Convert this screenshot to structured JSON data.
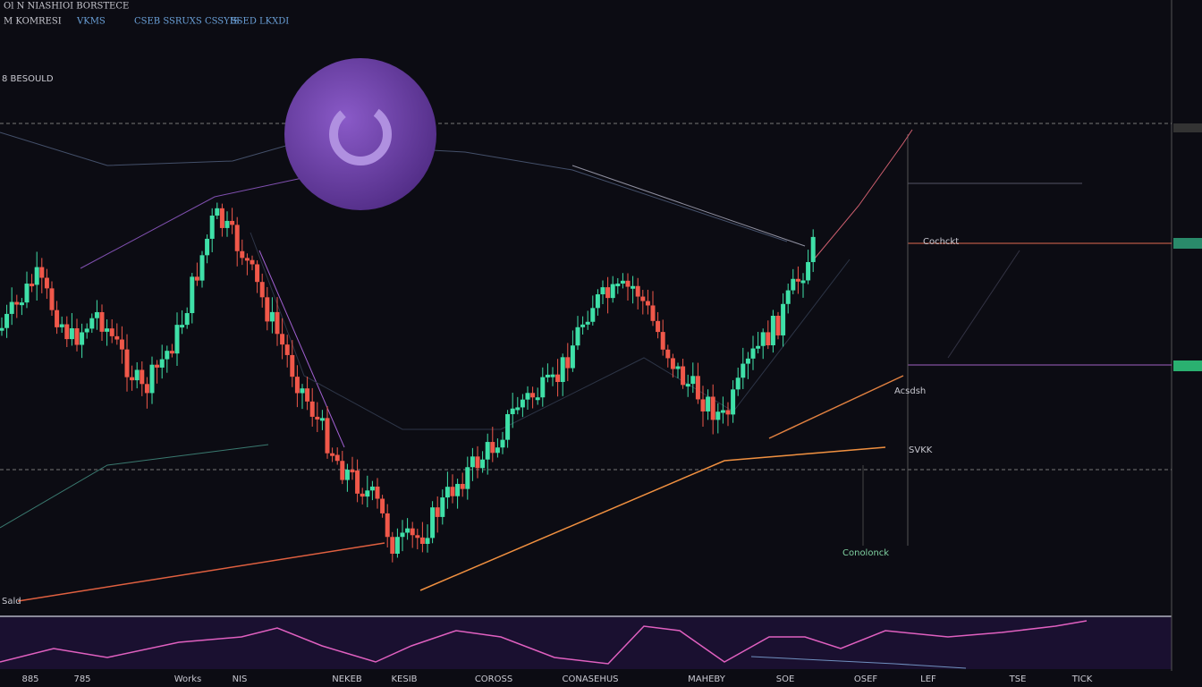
{
  "header": {
    "title": "Ol N NIASHIOI BORSTECE",
    "subtitle": "M KOMRESI",
    "tags": [
      "VKMS",
      "CSEB SSRUXS CSSYIS",
      "SSED LKXDI"
    ]
  },
  "labels": {
    "left": "8 BESOULD",
    "cochckt": "Cochckt",
    "acsdsh": "Acsdsh",
    "svkk": "SVKK",
    "conolonck": "Conolonck",
    "sald": "Sald"
  },
  "x_axis": [
    "885",
    "785",
    "Works",
    "NIS",
    "NEKEB",
    "KESIB",
    "COROSS",
    "CONASEHUS",
    "MAHEBY",
    "SOE",
    "OSEF",
    "LEF",
    "TSE",
    "TICK"
  ]
}
